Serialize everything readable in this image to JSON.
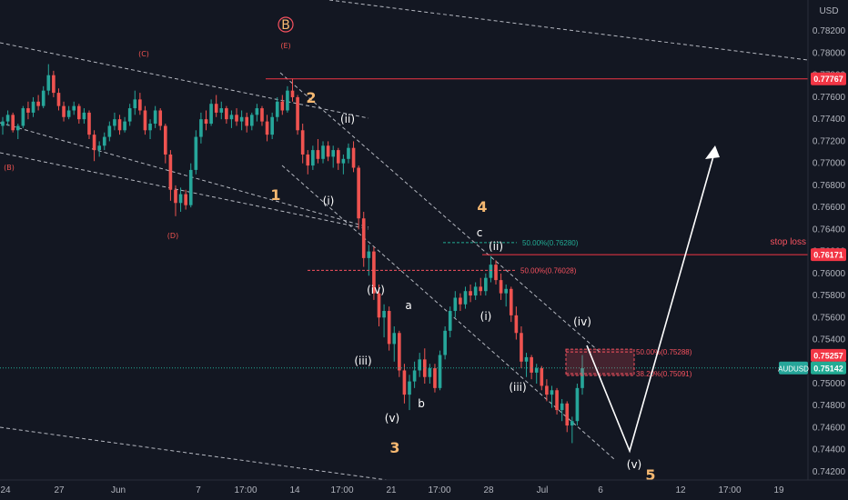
{
  "chart_data": {
    "type": "candlestick",
    "symbol": "AUDUSD",
    "currency": "USD",
    "ylim": [
      0.7415,
      0.784
    ],
    "y_ticks": [
      "0.78200",
      "0.78000",
      "0.77800",
      "0.77600",
      "0.77400",
      "0.77200",
      "0.77000",
      "0.76800",
      "0.76600",
      "0.76400",
      "0.76200",
      "0.76000",
      "0.75800",
      "0.75600",
      "0.75400",
      "0.75200",
      "0.75000",
      "0.74800",
      "0.74600",
      "0.74400",
      "0.74200"
    ],
    "x_ticks": [
      "24",
      "27",
      "Jun",
      "7",
      "17:00",
      "14",
      "17:00",
      "21",
      "17:00",
      "28",
      "Jul",
      "6",
      "12",
      "17:00",
      "19"
    ],
    "price_labels": [
      {
        "label": "0.77767",
        "price": 0.77767,
        "color": "#f23645"
      },
      {
        "label": "0.76171",
        "price": 0.76171,
        "color": "#f23645"
      },
      {
        "label": "0.75257",
        "price": 0.75257,
        "color": "#f23645"
      },
      {
        "label": "0.75142",
        "price": 0.75142,
        "color": "#22ab94"
      }
    ],
    "symbol_label": "AUDUSD",
    "stop_loss_label": "stop loss",
    "fib_levels": [
      {
        "label": "50.00%(0.76280)",
        "price": 0.7628,
        "color": "#22ab94"
      },
      {
        "label": "50.00%(0.76028)",
        "price": 0.76028,
        "color": "#f7525f"
      },
      {
        "label": "50.00%(0.75288)",
        "price": 0.75288,
        "color": "#f7525f"
      },
      {
        "label": "38.20%(0.75091)",
        "price": 0.75091,
        "color": "#f7525f"
      }
    ],
    "primary_waves": [
      {
        "label": "1",
        "color": "#f5b871"
      },
      {
        "label": "2",
        "color": "#f5b871"
      },
      {
        "label": "3",
        "color": "#f5b871"
      },
      {
        "label": "4",
        "color": "#f5b871"
      },
      {
        "label": "5",
        "color": "#f5b871"
      },
      {
        "label": "B",
        "color": "#f5b871"
      }
    ],
    "minor_waves": [
      "(i)",
      "(ii)",
      "(iii)",
      "(iv)",
      "(v)",
      "(i)",
      "(ii)",
      "(iii)",
      "(iv)",
      "(v)",
      "a",
      "b",
      "c"
    ],
    "corrective_labels": [
      "(B)",
      "(C)",
      "(D)",
      "(E)"
    ],
    "colors": {
      "up": "#26a69a",
      "down": "#ef5350",
      "background": "#131722",
      "text": "#b2b5be",
      "trendline": "#d1d4dc",
      "stop": "#f23645"
    },
    "candles": [
      {
        "o": 0.7734,
        "h": 0.7742,
        "l": 0.7726,
        "c": 0.7738
      },
      {
        "o": 0.7738,
        "h": 0.7748,
        "l": 0.7734,
        "c": 0.7744
      },
      {
        "o": 0.7744,
        "h": 0.7746,
        "l": 0.7728,
        "c": 0.773
      },
      {
        "o": 0.773,
        "h": 0.7736,
        "l": 0.7722,
        "c": 0.7734
      },
      {
        "o": 0.7734,
        "h": 0.7752,
        "l": 0.7732,
        "c": 0.775
      },
      {
        "o": 0.775,
        "h": 0.7756,
        "l": 0.774,
        "c": 0.7746
      },
      {
        "o": 0.7746,
        "h": 0.776,
        "l": 0.7742,
        "c": 0.7756
      },
      {
        "o": 0.7756,
        "h": 0.7762,
        "l": 0.7748,
        "c": 0.7752
      },
      {
        "o": 0.7752,
        "h": 0.777,
        "l": 0.775,
        "c": 0.7766
      },
      {
        "o": 0.7766,
        "h": 0.779,
        "l": 0.7762,
        "c": 0.778
      },
      {
        "o": 0.778,
        "h": 0.7784,
        "l": 0.776,
        "c": 0.7764
      },
      {
        "o": 0.7764,
        "h": 0.7768,
        "l": 0.7748,
        "c": 0.7752
      },
      {
        "o": 0.7752,
        "h": 0.7756,
        "l": 0.7738,
        "c": 0.7742
      },
      {
        "o": 0.7742,
        "h": 0.7752,
        "l": 0.774,
        "c": 0.7748
      },
      {
        "o": 0.7748,
        "h": 0.7756,
        "l": 0.7744,
        "c": 0.7752
      },
      {
        "o": 0.7752,
        "h": 0.7754,
        "l": 0.7736,
        "c": 0.774
      },
      {
        "o": 0.774,
        "h": 0.775,
        "l": 0.7736,
        "c": 0.7746
      },
      {
        "o": 0.7746,
        "h": 0.7748,
        "l": 0.7722,
        "c": 0.7726
      },
      {
        "o": 0.7726,
        "h": 0.773,
        "l": 0.7702,
        "c": 0.7712
      },
      {
        "o": 0.7712,
        "h": 0.772,
        "l": 0.7706,
        "c": 0.7716
      },
      {
        "o": 0.7716,
        "h": 0.7728,
        "l": 0.7712,
        "c": 0.7724
      },
      {
        "o": 0.7724,
        "h": 0.7738,
        "l": 0.772,
        "c": 0.7734
      },
      {
        "o": 0.7734,
        "h": 0.7746,
        "l": 0.773,
        "c": 0.774
      },
      {
        "o": 0.774,
        "h": 0.7744,
        "l": 0.7726,
        "c": 0.773
      },
      {
        "o": 0.773,
        "h": 0.7742,
        "l": 0.7728,
        "c": 0.7738
      },
      {
        "o": 0.7738,
        "h": 0.7754,
        "l": 0.7734,
        "c": 0.775
      },
      {
        "o": 0.775,
        "h": 0.7766,
        "l": 0.7744,
        "c": 0.7758
      },
      {
        "o": 0.7758,
        "h": 0.7764,
        "l": 0.7744,
        "c": 0.7748
      },
      {
        "o": 0.7748,
        "h": 0.7752,
        "l": 0.7726,
        "c": 0.773
      },
      {
        "o": 0.773,
        "h": 0.774,
        "l": 0.7722,
        "c": 0.7736
      },
      {
        "o": 0.7736,
        "h": 0.7752,
        "l": 0.7732,
        "c": 0.7748
      },
      {
        "o": 0.7748,
        "h": 0.775,
        "l": 0.773,
        "c": 0.7734
      },
      {
        "o": 0.7734,
        "h": 0.7736,
        "l": 0.77,
        "c": 0.7708
      },
      {
        "o": 0.7708,
        "h": 0.7712,
        "l": 0.7666,
        "c": 0.7676
      },
      {
        "o": 0.7676,
        "h": 0.768,
        "l": 0.7652,
        "c": 0.7664
      },
      {
        "o": 0.7664,
        "h": 0.7678,
        "l": 0.7656,
        "c": 0.7672
      },
      {
        "o": 0.7672,
        "h": 0.7676,
        "l": 0.7658,
        "c": 0.7662
      },
      {
        "o": 0.7662,
        "h": 0.77,
        "l": 0.766,
        "c": 0.7694
      },
      {
        "o": 0.7694,
        "h": 0.773,
        "l": 0.769,
        "c": 0.7724
      },
      {
        "o": 0.7724,
        "h": 0.7746,
        "l": 0.7718,
        "c": 0.774
      },
      {
        "o": 0.774,
        "h": 0.7748,
        "l": 0.773,
        "c": 0.7736
      },
      {
        "o": 0.7736,
        "h": 0.7758,
        "l": 0.7734,
        "c": 0.7754
      },
      {
        "o": 0.7754,
        "h": 0.7762,
        "l": 0.7742,
        "c": 0.7746
      },
      {
        "o": 0.7746,
        "h": 0.7756,
        "l": 0.774,
        "c": 0.775
      },
      {
        "o": 0.775,
        "h": 0.7752,
        "l": 0.7736,
        "c": 0.774
      },
      {
        "o": 0.774,
        "h": 0.7748,
        "l": 0.7732,
        "c": 0.7744
      },
      {
        "o": 0.7744,
        "h": 0.775,
        "l": 0.7734,
        "c": 0.7738
      },
      {
        "o": 0.7738,
        "h": 0.7748,
        "l": 0.773,
        "c": 0.7742
      },
      {
        "o": 0.7742,
        "h": 0.7746,
        "l": 0.7728,
        "c": 0.7734
      },
      {
        "o": 0.7734,
        "h": 0.7746,
        "l": 0.773,
        "c": 0.7744
      },
      {
        "o": 0.7744,
        "h": 0.7754,
        "l": 0.7738,
        "c": 0.775
      },
      {
        "o": 0.775,
        "h": 0.7752,
        "l": 0.7734,
        "c": 0.7738
      },
      {
        "o": 0.7738,
        "h": 0.7744,
        "l": 0.772,
        "c": 0.7726
      },
      {
        "o": 0.7726,
        "h": 0.7746,
        "l": 0.7722,
        "c": 0.7742
      },
      {
        "o": 0.7742,
        "h": 0.776,
        "l": 0.7738,
        "c": 0.7756
      },
      {
        "o": 0.7756,
        "h": 0.7762,
        "l": 0.7744,
        "c": 0.7748
      },
      {
        "o": 0.7748,
        "h": 0.777,
        "l": 0.7746,
        "c": 0.7766
      },
      {
        "o": 0.7766,
        "h": 0.7777,
        "l": 0.7756,
        "c": 0.776
      },
      {
        "o": 0.776,
        "h": 0.7762,
        "l": 0.7726,
        "c": 0.773
      },
      {
        "o": 0.773,
        "h": 0.7736,
        "l": 0.77,
        "c": 0.7708
      },
      {
        "o": 0.7708,
        "h": 0.7712,
        "l": 0.769,
        "c": 0.7698
      },
      {
        "o": 0.7698,
        "h": 0.7716,
        "l": 0.7694,
        "c": 0.7712
      },
      {
        "o": 0.7712,
        "h": 0.7722,
        "l": 0.77,
        "c": 0.7704
      },
      {
        "o": 0.7704,
        "h": 0.772,
        "l": 0.77,
        "c": 0.7716
      },
      {
        "o": 0.7716,
        "h": 0.772,
        "l": 0.7702,
        "c": 0.7706
      },
      {
        "o": 0.7706,
        "h": 0.7716,
        "l": 0.7696,
        "c": 0.7712
      },
      {
        "o": 0.7712,
        "h": 0.7714,
        "l": 0.7694,
        "c": 0.77
      },
      {
        "o": 0.77,
        "h": 0.7708,
        "l": 0.769,
        "c": 0.7704
      },
      {
        "o": 0.7704,
        "h": 0.7718,
        "l": 0.77,
        "c": 0.7714
      },
      {
        "o": 0.7714,
        "h": 0.772,
        "l": 0.7692,
        "c": 0.7696
      },
      {
        "o": 0.7696,
        "h": 0.7698,
        "l": 0.764,
        "c": 0.765
      },
      {
        "o": 0.765,
        "h": 0.7656,
        "l": 0.7606,
        "c": 0.7614
      },
      {
        "o": 0.7614,
        "h": 0.7626,
        "l": 0.7598,
        "c": 0.762
      },
      {
        "o": 0.762,
        "h": 0.7624,
        "l": 0.7576,
        "c": 0.7582
      },
      {
        "o": 0.7582,
        "h": 0.759,
        "l": 0.7552,
        "c": 0.756
      },
      {
        "o": 0.756,
        "h": 0.7572,
        "l": 0.7542,
        "c": 0.7566
      },
      {
        "o": 0.7566,
        "h": 0.757,
        "l": 0.753,
        "c": 0.7536
      },
      {
        "o": 0.7536,
        "h": 0.7552,
        "l": 0.752,
        "c": 0.7546
      },
      {
        "o": 0.7546,
        "h": 0.7548,
        "l": 0.7506,
        "c": 0.7512
      },
      {
        "o": 0.7512,
        "h": 0.7518,
        "l": 0.7482,
        "c": 0.749
      },
      {
        "o": 0.749,
        "h": 0.7508,
        "l": 0.7476,
        "c": 0.7502
      },
      {
        "o": 0.7502,
        "h": 0.752,
        "l": 0.7496,
        "c": 0.7512
      },
      {
        "o": 0.7512,
        "h": 0.7528,
        "l": 0.7506,
        "c": 0.7522
      },
      {
        "o": 0.7522,
        "h": 0.7532,
        "l": 0.75,
        "c": 0.7506
      },
      {
        "o": 0.7506,
        "h": 0.7518,
        "l": 0.75,
        "c": 0.7514
      },
      {
        "o": 0.7514,
        "h": 0.7518,
        "l": 0.7492,
        "c": 0.7496
      },
      {
        "o": 0.7496,
        "h": 0.753,
        "l": 0.7494,
        "c": 0.7526
      },
      {
        "o": 0.7526,
        "h": 0.7552,
        "l": 0.7522,
        "c": 0.7548
      },
      {
        "o": 0.7548,
        "h": 0.757,
        "l": 0.7542,
        "c": 0.7566
      },
      {
        "o": 0.7566,
        "h": 0.7584,
        "l": 0.756,
        "c": 0.7578
      },
      {
        "o": 0.7578,
        "h": 0.7582,
        "l": 0.7566,
        "c": 0.7572
      },
      {
        "o": 0.7572,
        "h": 0.7588,
        "l": 0.7568,
        "c": 0.7584
      },
      {
        "o": 0.7584,
        "h": 0.759,
        "l": 0.7574,
        "c": 0.758
      },
      {
        "o": 0.758,
        "h": 0.7592,
        "l": 0.7576,
        "c": 0.7588
      },
      {
        "o": 0.7588,
        "h": 0.7596,
        "l": 0.758,
        "c": 0.7584
      },
      {
        "o": 0.7584,
        "h": 0.76,
        "l": 0.758,
        "c": 0.7596
      },
      {
        "o": 0.7596,
        "h": 0.7616,
        "l": 0.7592,
        "c": 0.7608
      },
      {
        "o": 0.7608,
        "h": 0.7612,
        "l": 0.759,
        "c": 0.7594
      },
      {
        "o": 0.7594,
        "h": 0.76,
        "l": 0.7576,
        "c": 0.7582
      },
      {
        "o": 0.7582,
        "h": 0.759,
        "l": 0.757,
        "c": 0.7586
      },
      {
        "o": 0.7586,
        "h": 0.7588,
        "l": 0.7556,
        "c": 0.7562
      },
      {
        "o": 0.7562,
        "h": 0.757,
        "l": 0.754,
        "c": 0.7546
      },
      {
        "o": 0.7546,
        "h": 0.7552,
        "l": 0.7514,
        "c": 0.752
      },
      {
        "o": 0.752,
        "h": 0.7528,
        "l": 0.7506,
        "c": 0.7524
      },
      {
        "o": 0.7524,
        "h": 0.7526,
        "l": 0.7504,
        "c": 0.751
      },
      {
        "o": 0.751,
        "h": 0.7518,
        "l": 0.75,
        "c": 0.7514
      },
      {
        "o": 0.7514,
        "h": 0.7516,
        "l": 0.7494,
        "c": 0.7498
      },
      {
        "o": 0.7498,
        "h": 0.7504,
        "l": 0.7484,
        "c": 0.749
      },
      {
        "o": 0.749,
        "h": 0.7498,
        "l": 0.7478,
        "c": 0.7494
      },
      {
        "o": 0.7494,
        "h": 0.7496,
        "l": 0.7472,
        "c": 0.7476
      },
      {
        "o": 0.7476,
        "h": 0.7486,
        "l": 0.7466,
        "c": 0.7482
      },
      {
        "o": 0.7482,
        "h": 0.7484,
        "l": 0.7456,
        "c": 0.7462
      },
      {
        "o": 0.7462,
        "h": 0.747,
        "l": 0.7446,
        "c": 0.7466
      },
      {
        "o": 0.7466,
        "h": 0.75,
        "l": 0.7462,
        "c": 0.7496
      },
      {
        "o": 0.7496,
        "h": 0.7526,
        "l": 0.749,
        "c": 0.7514
      }
    ]
  }
}
